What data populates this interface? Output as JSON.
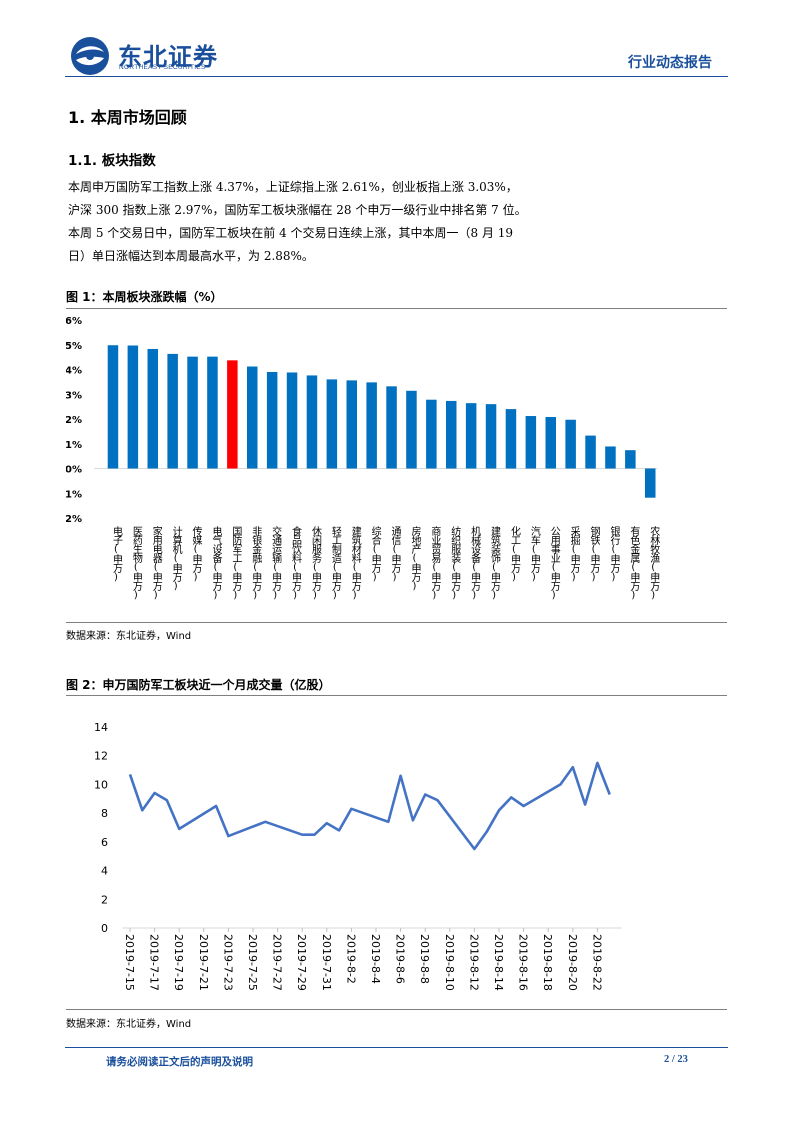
{
  "header": {
    "logo_cn": "东北证券",
    "logo_en": "NORTHEAST SECURITIES",
    "report_type": "行业动态报告"
  },
  "section": {
    "title": "1.  本周市场回顾",
    "subtitle": "1.1.    板块指数",
    "paragraph_lines": [
      "本周申万国防军工指数上涨 4.37%，上证综指上涨 2.61%，创业板指上涨 3.03%，",
      "沪深 300 指数上涨 2.97%，国防军工板块涨幅在 28 个申万一级行业中排名第 7 位。",
      "本周 5 个交易日中，国防军工板块在前 4 个交易日连续上涨，其中本周一（8 月 19",
      "日）单日涨幅达到本周最高水平，为 2.88%。"
    ]
  },
  "figure1": {
    "title": "图 1：本周板块涨跌幅（%）",
    "source": "数据来源：东北证券，Wind"
  },
  "figure2": {
    "title": "图 2：申万国防军工板块近一个月成交量（亿股）",
    "source": "数据来源：东北证券，Wind"
  },
  "footer": {
    "note": "请务必阅读正文后的声明及说明",
    "page": "2 / 23"
  },
  "chart_data": [
    {
      "type": "bar",
      "title": "",
      "ylim": [
        -2,
        6
      ],
      "yticks": [
        "6%",
        "5%",
        "4%",
        "3%",
        "2%",
        "1%",
        "0%",
        "-1%",
        "-2%"
      ],
      "categories": [
        "电子(申万)",
        "医药生物(申万)",
        "家用电器(申万)",
        "计算机(申万)",
        "传媒(申万)",
        "电气设备(申万)",
        "国防军工(申万)",
        "非银金融(申万)",
        "交通运输(申万)",
        "食品饮料(申万)",
        "休闲服务(申万)",
        "轻工制造(申万)",
        "建筑材料(申万)",
        "综合(申万)",
        "通信(申万)",
        "房地产(申万)",
        "商业贸易(申万)",
        "纺织服装(申万)",
        "机械设备(申万)",
        "建筑装饰(申万)",
        "化工(申万)",
        "汽车(申万)",
        "公用事业(申万)",
        "采掘(申万)",
        "钢铁(申万)",
        "银行(申万)",
        "有色金属(申万)",
        "农林牧渔(申万)"
      ],
      "values": [
        4.98,
        4.97,
        4.83,
        4.63,
        4.52,
        4.52,
        4.37,
        4.12,
        3.9,
        3.88,
        3.76,
        3.6,
        3.56,
        3.48,
        3.32,
        3.14,
        2.78,
        2.73,
        2.64,
        2.6,
        2.4,
        2.12,
        2.08,
        1.97,
        1.33,
        0.89,
        0.74,
        -1.18
      ],
      "colors": {
        "default": "#0070c0",
        "highlight": "#ff0000",
        "highlight_category": "国防军工(申万)"
      },
      "grid": false
    },
    {
      "type": "line",
      "title": "",
      "ylim": [
        0,
        14
      ],
      "yticks": [
        "0",
        "2",
        "4",
        "6",
        "8",
        "10",
        "12",
        "14"
      ],
      "xticks": [
        "2019-7-15",
        "2019-7-17",
        "2019-7-19",
        "2019-7-21",
        "2019-7-23",
        "2019-7-25",
        "2019-7-27",
        "2019-7-29",
        "2019-7-31",
        "2019-8-2",
        "2019-8-4",
        "2019-8-6",
        "2019-8-8",
        "2019-8-10",
        "2019-8-12",
        "2019-8-14",
        "2019-8-16",
        "2019-8-18",
        "2019-8-20",
        "2019-8-22"
      ],
      "x": [
        "2019-7-15",
        "2019-7-16",
        "2019-7-17",
        "2019-7-18",
        "2019-7-19",
        "2019-7-22",
        "2019-7-23",
        "2019-7-26",
        "2019-7-29",
        "2019-7-30",
        "2019-7-31",
        "2019-8-1",
        "2019-8-2",
        "2019-8-5",
        "2019-8-6",
        "2019-8-7",
        "2019-8-8",
        "2019-8-9",
        "2019-8-12",
        "2019-8-13",
        "2019-8-14",
        "2019-8-15",
        "2019-8-16",
        "2019-8-19",
        "2019-8-20",
        "2019-8-21",
        "2019-8-22",
        "2019-8-23"
      ],
      "series": [
        {
          "values": [
            10.7,
            8.2,
            9.4,
            8.9,
            6.9,
            8.5,
            6.4,
            7.4,
            6.5,
            6.5,
            7.3,
            6.8,
            8.3,
            7.4,
            10.6,
            7.5,
            9.3,
            8.9,
            5.5,
            6.7,
            8.2,
            9.1,
            8.5,
            10.0,
            11.2,
            8.6,
            11.5,
            9.3
          ]
        }
      ],
      "colors": {
        "line": "#4472c4"
      },
      "grid": false
    }
  ]
}
